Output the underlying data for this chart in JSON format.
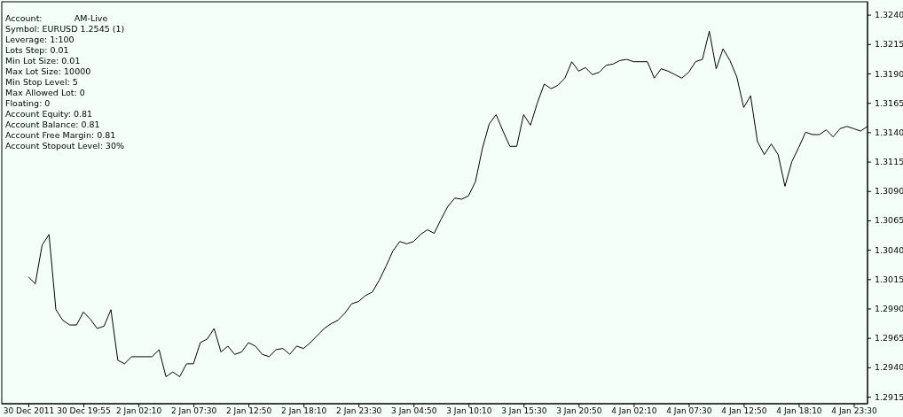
{
  "chart_data": {
    "type": "line",
    "annotations": [
      "Account:            AM-Live",
      "Symbol: EURUSD 1.2545 (1)",
      "Leverage: 1:100",
      "Lots Step: 0.01",
      "Min Lot Size: 0.01",
      "Max Lot Size: 10000",
      "Min Stop Level: 5",
      "Max Allowed Lot: 0",
      "Floating: 0",
      "Account Equity: 0.81",
      "Account Balance: 0.81",
      "Account Free Margin: 0.81",
      "Account Stopout Level: 30%"
    ],
    "categories": [
      "30 Dec 2011",
      null,
      null,
      null,
      null,
      null,
      null,
      null,
      "30 Dec 19:55",
      null,
      null,
      null,
      null,
      null,
      null,
      null,
      "2 Jan 02:10",
      null,
      null,
      null,
      null,
      null,
      null,
      null,
      "2 Jan 07:30",
      null,
      null,
      null,
      null,
      null,
      null,
      null,
      "2 Jan 12:50",
      null,
      null,
      null,
      null,
      null,
      null,
      null,
      "2 Jan 18:10",
      null,
      null,
      null,
      null,
      null,
      null,
      null,
      "2 Jan 23:30",
      null,
      null,
      null,
      null,
      null,
      null,
      null,
      "3 Jan 04:50",
      null,
      null,
      null,
      null,
      null,
      null,
      null,
      "3 Jan 10:10",
      null,
      null,
      null,
      null,
      null,
      null,
      null,
      "3 Jan 15:30",
      null,
      null,
      null,
      null,
      null,
      null,
      null,
      "3 Jan 20:50",
      null,
      null,
      null,
      null,
      null,
      null,
      null,
      "4 Jan 02:10",
      null,
      null,
      null,
      null,
      null,
      null,
      null,
      "4 Jan 07:30",
      null,
      null,
      null,
      null,
      null,
      null,
      null,
      "4 Jan 12:50",
      null,
      null,
      null,
      null,
      null,
      null,
      null,
      "4 Jan 18:10",
      null,
      null,
      null,
      null,
      null,
      null,
      null,
      "4 Jan 23:30",
      null,
      null
    ],
    "series": [
      {
        "color": "#000000",
        "values": [
          1.3017,
          1.3011,
          1.3044,
          1.3053,
          1.2989,
          1.298,
          1.2976,
          1.2976,
          1.2987,
          1.2981,
          1.2973,
          1.2975,
          1.2989,
          1.2946,
          1.2943,
          1.2949,
          1.2949,
          1.2949,
          1.2949,
          1.2955,
          1.2932,
          1.2936,
          1.2932,
          1.2943,
          1.2943,
          1.2961,
          1.2964,
          1.2973,
          1.2953,
          1.2958,
          1.2951,
          1.2953,
          1.2961,
          1.2958,
          1.2951,
          1.2949,
          1.2955,
          1.2956,
          1.2951,
          1.2958,
          1.2956,
          1.2961,
          1.2967,
          1.2973,
          1.2977,
          1.298,
          1.2986,
          1.2994,
          1.2996,
          1.3001,
          1.3004,
          1.3014,
          1.3026,
          1.3039,
          1.3047,
          1.3045,
          1.3047,
          1.3053,
          1.3057,
          1.3054,
          1.3066,
          1.3077,
          1.3084,
          1.3083,
          1.3086,
          1.3098,
          1.3126,
          1.3147,
          1.3155,
          1.3141,
          1.3128,
          1.3128,
          1.3155,
          1.3146,
          1.3165,
          1.3181,
          1.3177,
          1.318,
          1.3186,
          1.32,
          1.3192,
          1.3195,
          1.3189,
          1.3191,
          1.3197,
          1.3198,
          1.3201,
          1.3202,
          1.32,
          1.32,
          1.32,
          1.3186,
          1.3194,
          1.3192,
          1.3189,
          1.3186,
          1.3191,
          1.32,
          1.3202,
          1.3226,
          1.3194,
          1.3211,
          1.3201,
          1.3187,
          1.3161,
          1.3171,
          1.3132,
          1.3121,
          1.313,
          1.3121,
          1.3094,
          1.3115,
          1.3127,
          1.314,
          1.3138,
          1.3138,
          1.3142,
          1.3136,
          1.3143,
          1.3145,
          1.3143,
          1.3141,
          1.3145
        ]
      }
    ],
    "ylim": [
      1.2909,
      1.3251
    ],
    "yticks": [
      1.2915,
      {
        "value": 1.294,
        "label": "1.2940"
      },
      1.2965,
      {
        "value": 1.299,
        "label": "1.2990"
      },
      1.3015,
      {
        "value": 1.304,
        "label": "1.3040"
      },
      1.3065,
      {
        "value": 1.309,
        "label": "1.3090"
      },
      1.3115,
      {
        "value": 1.314,
        "label": "1.3140"
      },
      1.3165,
      {
        "value": 1.319,
        "label": "1.3190"
      },
      1.3215,
      {
        "value": 1.324,
        "label": "1.3240"
      }
    ],
    "marker": "none"
  }
}
